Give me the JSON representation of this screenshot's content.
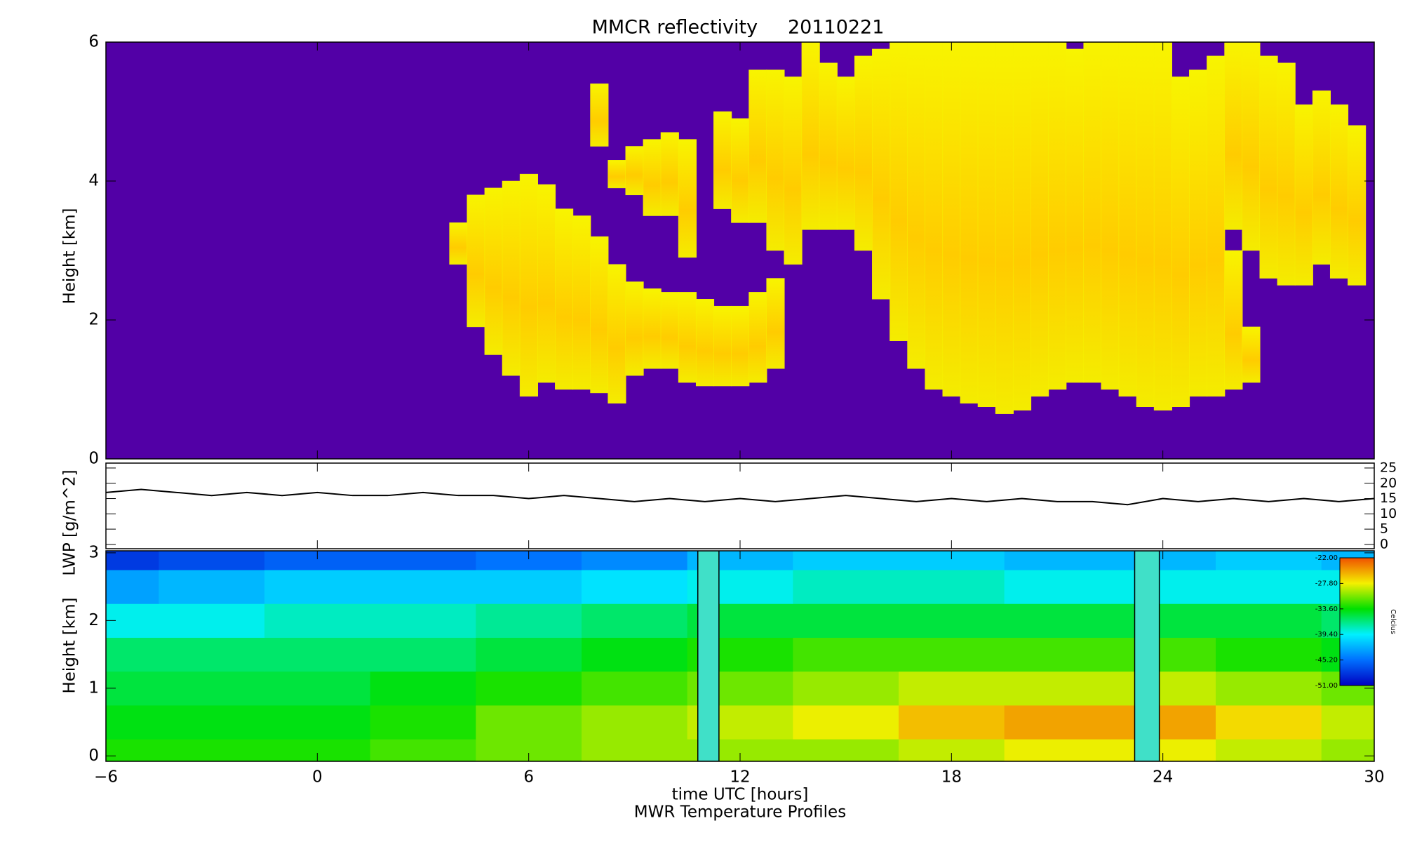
{
  "chart_data": [
    {
      "type": "range",
      "title": "MMCR reflectivity     20110221",
      "ylabel": "Height [km]",
      "background": "#5200a6",
      "ylim": [
        0,
        6
      ],
      "yticks": [
        0,
        2,
        4,
        6
      ],
      "x": [
        4.0,
        4.5,
        5.0,
        5.5,
        6.0,
        6.5,
        7.0,
        7.5,
        8.0,
        8.5,
        9.0,
        9.5,
        10.0,
        10.5,
        11.0,
        11.5,
        12.0,
        12.5,
        13.0,
        13.5,
        14.0,
        14.5,
        15.0,
        15.5,
        16.0,
        16.5,
        17.0,
        17.5,
        18.0,
        18.5,
        19.0,
        19.5,
        20.0,
        20.5,
        21.0,
        21.5,
        22.0,
        22.5,
        23.0,
        23.5,
        24.0,
        24.5,
        25.0,
        25.5,
        26.0,
        26.5,
        27.0,
        27.5,
        28.0,
        28.5,
        29.0,
        29.5
      ],
      "series": [
        {
          "color": "#f6f200",
          "base": [
            2.8,
            1.9,
            1.5,
            1.2,
            0.9,
            1.1,
            1.0,
            1.0,
            0.95,
            0.8,
            1.2,
            1.3,
            1.3,
            1.1,
            1.05,
            1.05,
            1.05,
            1.1,
            1.3,
            null,
            null,
            null,
            null,
            null,
            null,
            1.7,
            1.3,
            1.0,
            0.9,
            0.8,
            0.75,
            0.65,
            0.7,
            0.9,
            1.0,
            1.1,
            1.1,
            1.0,
            0.9,
            0.75,
            0.7,
            0.75,
            0.9,
            0.9,
            1.0,
            1.1,
            null,
            null,
            null,
            null,
            null,
            null
          ],
          "top": [
            3.4,
            3.8,
            3.9,
            4.0,
            4.1,
            3.95,
            3.6,
            3.5,
            3.2,
            2.8,
            2.55,
            2.45,
            2.4,
            2.4,
            2.3,
            2.2,
            2.2,
            2.4,
            2.6,
            null,
            null,
            null,
            null,
            null,
            null,
            6.0,
            6.0,
            6.0,
            6.0,
            6.0,
            6.0,
            6.0,
            6.0,
            6.0,
            6.0,
            5.9,
            6.0,
            6.0,
            6.0,
            6.0,
            6.0,
            5.5,
            5.6,
            5.8,
            3.0,
            1.9,
            null,
            null,
            null,
            null,
            null,
            null
          ]
        },
        {
          "color": "#f6f200",
          "base": [
            null,
            null,
            null,
            null,
            null,
            null,
            null,
            null,
            4.5,
            3.9,
            3.8,
            3.5,
            3.5,
            2.9,
            null,
            3.6,
            3.4,
            3.4,
            3.0,
            2.8,
            3.3,
            3.3,
            3.3,
            3.0,
            2.3,
            null,
            null,
            null,
            null,
            null,
            null,
            null,
            null,
            null,
            null,
            null,
            null,
            null,
            null,
            null,
            null,
            null,
            null,
            null,
            3.3,
            3.0,
            2.6,
            2.5,
            2.5,
            2.8,
            2.6,
            2.5
          ],
          "top": [
            null,
            null,
            null,
            null,
            null,
            null,
            null,
            null,
            5.4,
            4.3,
            4.5,
            4.6,
            4.7,
            4.6,
            null,
            5.0,
            4.9,
            5.6,
            5.6,
            5.5,
            6.0,
            5.7,
            5.5,
            5.8,
            5.9,
            null,
            null,
            null,
            null,
            null,
            null,
            null,
            null,
            null,
            null,
            null,
            null,
            null,
            null,
            null,
            null,
            null,
            null,
            null,
            6.0,
            6.0,
            5.8,
            5.7,
            5.1,
            5.3,
            5.1,
            4.8
          ]
        }
      ]
    },
    {
      "type": "line",
      "ylabel": "LWP [g/m^2]",
      "y2lim": [
        -1.4,
        26.6
      ],
      "y2ticks": [
        0,
        5,
        10,
        15,
        20,
        25
      ],
      "x": [
        -6,
        -5,
        -4,
        -3,
        -2,
        -1,
        0,
        1,
        2,
        3,
        4,
        5,
        6,
        7,
        8,
        9,
        10,
        11,
        12,
        13,
        14,
        15,
        16,
        17,
        18,
        19,
        20,
        21,
        22,
        23,
        24,
        25,
        26,
        27,
        28,
        29,
        30
      ],
      "series": [
        {
          "color": "#000000",
          "axis": "y2",
          "values": [
            17,
            18,
            17,
            16,
            17,
            16,
            17,
            16,
            16,
            17,
            16,
            16,
            15,
            16,
            15,
            14,
            15,
            14,
            15,
            14,
            15,
            16,
            15,
            14,
            15,
            14,
            15,
            14,
            14,
            13,
            15,
            14,
            15,
            14,
            15,
            14,
            15
          ]
        }
      ]
    },
    {
      "type": "heatmap",
      "ylabel": "Height [km]",
      "xlabel": "time UTC [hours]",
      "caption": "MWR Temperature Profiles",
      "xlim": [
        -6,
        30
      ],
      "xticks": [
        {
          "value": -6,
          "label": "−6"
        },
        0,
        6,
        12,
        18,
        24,
        30
      ],
      "ylim": [
        -0.08,
        3.03
      ],
      "yticks": [
        0,
        1,
        2,
        3
      ],
      "x": [
        -6,
        -3,
        0,
        3,
        6,
        9,
        12,
        15,
        18,
        21,
        24,
        27,
        30
      ],
      "y": [
        0,
        0.5,
        1,
        1.5,
        2,
        2.5,
        3
      ],
      "values": [
        [
          -33,
          -33,
          -33,
          -32,
          -31,
          -30,
          -30,
          -30,
          -29,
          -28,
          -28,
          -29,
          -30
        ],
        [
          -34,
          -34,
          -34,
          -33,
          -31,
          -30,
          -29,
          -28,
          -26,
          -25,
          -25,
          -27,
          -29
        ],
        [
          -35,
          -35,
          -35,
          -34,
          -33,
          -32,
          -31,
          -30,
          -29,
          -29,
          -29,
          -30,
          -31
        ],
        [
          -36,
          -36,
          -36,
          -36,
          -35,
          -34,
          -33,
          -32,
          -32,
          -32,
          -32,
          -33,
          -34
        ],
        [
          -39,
          -39,
          -38,
          -38,
          -37,
          -36,
          -35,
          -35,
          -35,
          -35,
          -35,
          -35,
          -36
        ],
        [
          -43,
          -42,
          -41,
          -41,
          -41,
          -40,
          -39,
          -38,
          -38,
          -39,
          -39,
          -39,
          -39
        ],
        [
          -48,
          -47,
          -46,
          -46,
          -45,
          -44,
          -42,
          -41,
          -41,
          -42,
          -42,
          -41,
          -42
        ]
      ],
      "missing": [
        [
          10.8,
          11.4
        ],
        [
          23.2,
          23.9
        ]
      ],
      "missing_color": "#40e0c8",
      "colorbar": {
        "label": "Celcius",
        "zlim": [
          -51,
          -22
        ],
        "ticks": [
          {
            "value": -22,
            "label": "-22.00"
          },
          {
            "value": -27.8,
            "label": "-27.80"
          },
          {
            "value": -33.6,
            "label": "-33.60"
          },
          {
            "value": -39.4,
            "label": "-39.40"
          },
          {
            "value": -45.2,
            "label": "-45.20"
          },
          {
            "value": -51,
            "label": "-51.00"
          }
        ],
        "colors": [
          "#0000c0",
          "#0070ff",
          "#00f0ff",
          "#00e000",
          "#f4f000",
          "#f05000"
        ]
      }
    }
  ]
}
